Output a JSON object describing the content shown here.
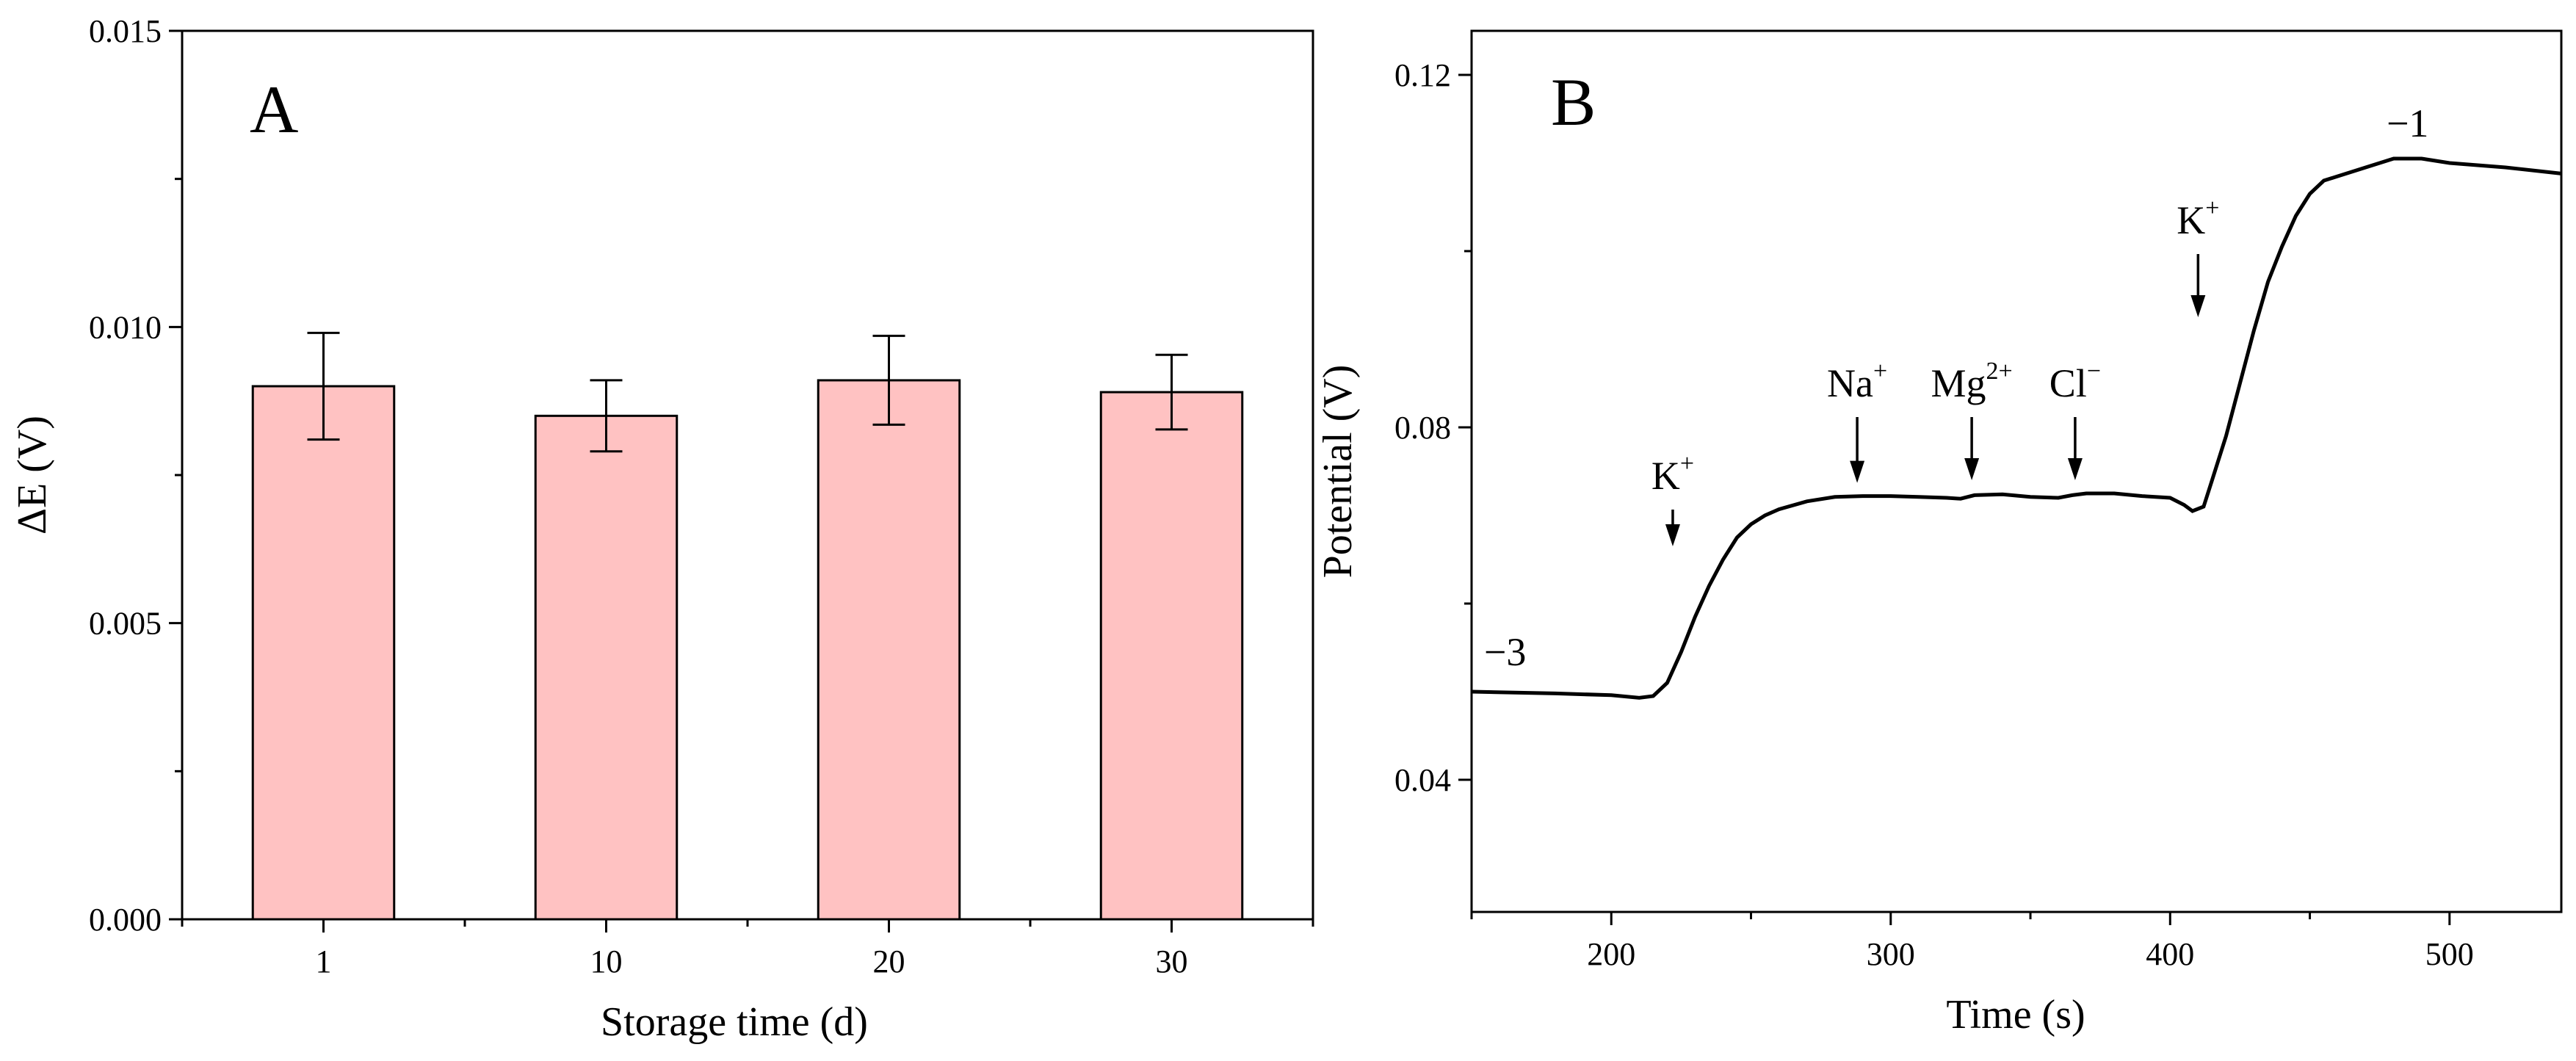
{
  "chart_data": [
    {
      "panel": "A",
      "type": "bar",
      "categories": [
        "1",
        "10",
        "20",
        "30"
      ],
      "values": [
        0.009,
        0.0085,
        0.0091,
        0.0089
      ],
      "errors": [
        0.0009,
        0.0006,
        0.00075,
        0.00063
      ],
      "xlabel": "Storage time (d)",
      "ylabel": "ΔE (V)",
      "ylim": [
        0,
        0.015
      ],
      "yticks": [
        "0.000",
        "0.005",
        "0.010",
        "0.015"
      ],
      "bar_color": "#ffc2c2",
      "edge_color": "#000000"
    },
    {
      "panel": "B",
      "type": "line",
      "xlabel": "Time (s)",
      "ylabel": "Potential (V)",
      "xlim": [
        150,
        540
      ],
      "ylim": [
        0.025,
        0.125
      ],
      "xticks": [
        "200",
        "300",
        "400",
        "500"
      ],
      "yticks": [
        "0.04",
        "0.08",
        "0.12"
      ],
      "series": [
        {
          "name": "potential",
          "x": [
            150,
            180,
            200,
            210,
            215,
            220,
            225,
            230,
            235,
            240,
            245,
            250,
            255,
            260,
            270,
            280,
            290,
            300,
            310,
            320,
            325,
            330,
            340,
            350,
            360,
            365,
            370,
            380,
            390,
            400,
            405,
            408,
            412,
            415,
            420,
            425,
            430,
            435,
            440,
            445,
            450,
            455,
            460,
            470,
            480,
            490,
            500,
            520,
            540
          ],
          "y": [
            0.05,
            0.0498,
            0.0496,
            0.0493,
            0.0495,
            0.051,
            0.0545,
            0.0585,
            0.062,
            0.065,
            0.0675,
            0.069,
            0.07,
            0.0707,
            0.0716,
            0.0721,
            0.0722,
            0.0722,
            0.0721,
            0.072,
            0.0719,
            0.0723,
            0.0724,
            0.0721,
            0.072,
            0.0723,
            0.0725,
            0.0725,
            0.0722,
            0.072,
            0.0712,
            0.0705,
            0.071,
            0.074,
            0.079,
            0.085,
            0.091,
            0.0965,
            0.1005,
            0.104,
            0.1065,
            0.108,
            0.1085,
            0.1095,
            0.1105,
            0.1105,
            0.11,
            0.1095,
            0.1088
          ]
        }
      ],
      "annotations": [
        {
          "id": "minus3",
          "text": "−3",
          "sup": "",
          "x": 162,
          "y": 0.053,
          "arrow": false
        },
        {
          "id": "k1",
          "text": "K",
          "sup": "+",
          "x": 222,
          "y": 0.073,
          "arrow": true,
          "arrow_to": 0.0665
        },
        {
          "id": "na",
          "text": "Na",
          "sup": "+",
          "x": 288,
          "y": 0.0835,
          "arrow": true,
          "arrow_to": 0.0737
        },
        {
          "id": "mg",
          "text": "Mg",
          "sup": "2+",
          "x": 329,
          "y": 0.0835,
          "arrow": true,
          "arrow_to": 0.074
        },
        {
          "id": "cl",
          "text": "Cl",
          "sup": "−",
          "x": 366,
          "y": 0.0835,
          "arrow": true,
          "arrow_to": 0.074
        },
        {
          "id": "k2",
          "text": "K",
          "sup": "+",
          "x": 410,
          "y": 0.102,
          "arrow": true,
          "arrow_to": 0.0925
        },
        {
          "id": "minus1",
          "text": "−1",
          "sup": "",
          "x": 485,
          "y": 0.113,
          "arrow": false
        }
      ],
      "line_color": "#000000"
    }
  ],
  "panels": {
    "a_label": "A",
    "b_label": "B"
  }
}
